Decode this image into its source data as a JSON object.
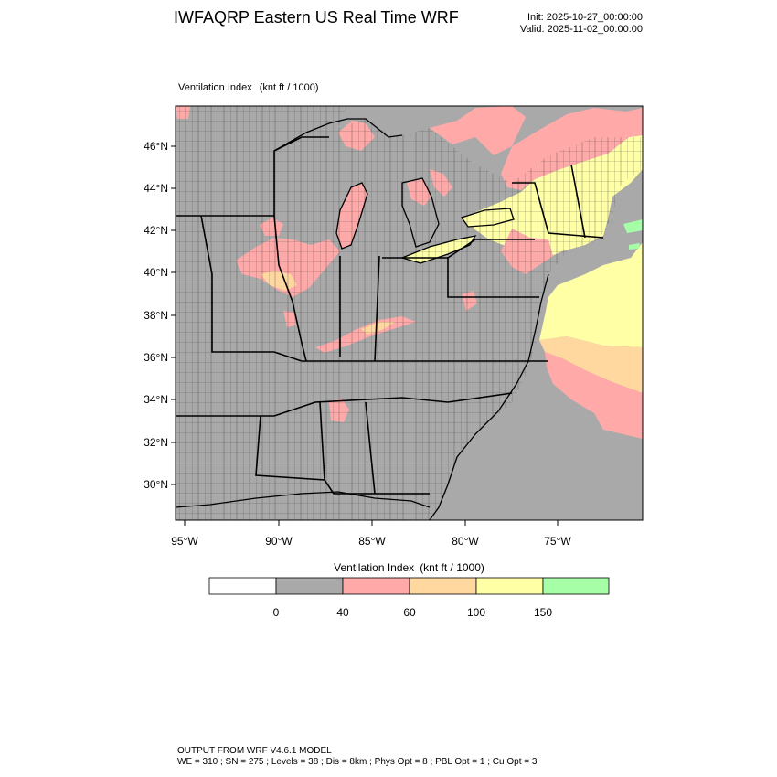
{
  "header": {
    "title": "IWFAQRP Eastern US Real Time WRF",
    "init": "Init: 2025-10-27_00:00:00",
    "valid": "Valid: 2025-11-02_00:00:00"
  },
  "plot": {
    "field_name": "Ventilation Index",
    "units": "(knt ft / 1000)",
    "lat_labels": [
      "46°N",
      "44°N",
      "42°N",
      "40°N",
      "38°N",
      "36°N",
      "34°N",
      "32°N",
      "30°N"
    ],
    "lon_labels": [
      "95°W",
      "90°W",
      "85°W",
      "80°W",
      "75°W"
    ]
  },
  "colorbar": {
    "title": "Ventilation Index",
    "units": "(knt ft / 1000)",
    "bins": [
      {
        "color": "#ffffff"
      },
      {
        "color": "#a9a9a9"
      },
      {
        "color": "#ffa9a9"
      },
      {
        "color": "#ffd8a0"
      },
      {
        "color": "#ffffa6"
      },
      {
        "color": "#a6ffa6"
      }
    ],
    "tick_labels": [
      "0",
      "40",
      "60",
      "100",
      "150"
    ]
  },
  "colors": {
    "background_field": "#a9a9a9",
    "level_40_60": "#ffa9a9",
    "level_60_100": "#ffd8a0",
    "level_100_150": "#ffffa6",
    "level_150_plus": "#a6ffa6"
  },
  "footer": {
    "line1": "OUTPUT FROM WRF V4.6.1 MODEL",
    "line2": "WE = 310 ; SN = 275 ; Levels = 38 ; Dis = 8km ; Phys Opt = 8 ; PBL Opt = 1 ; Cu Opt = 3"
  }
}
